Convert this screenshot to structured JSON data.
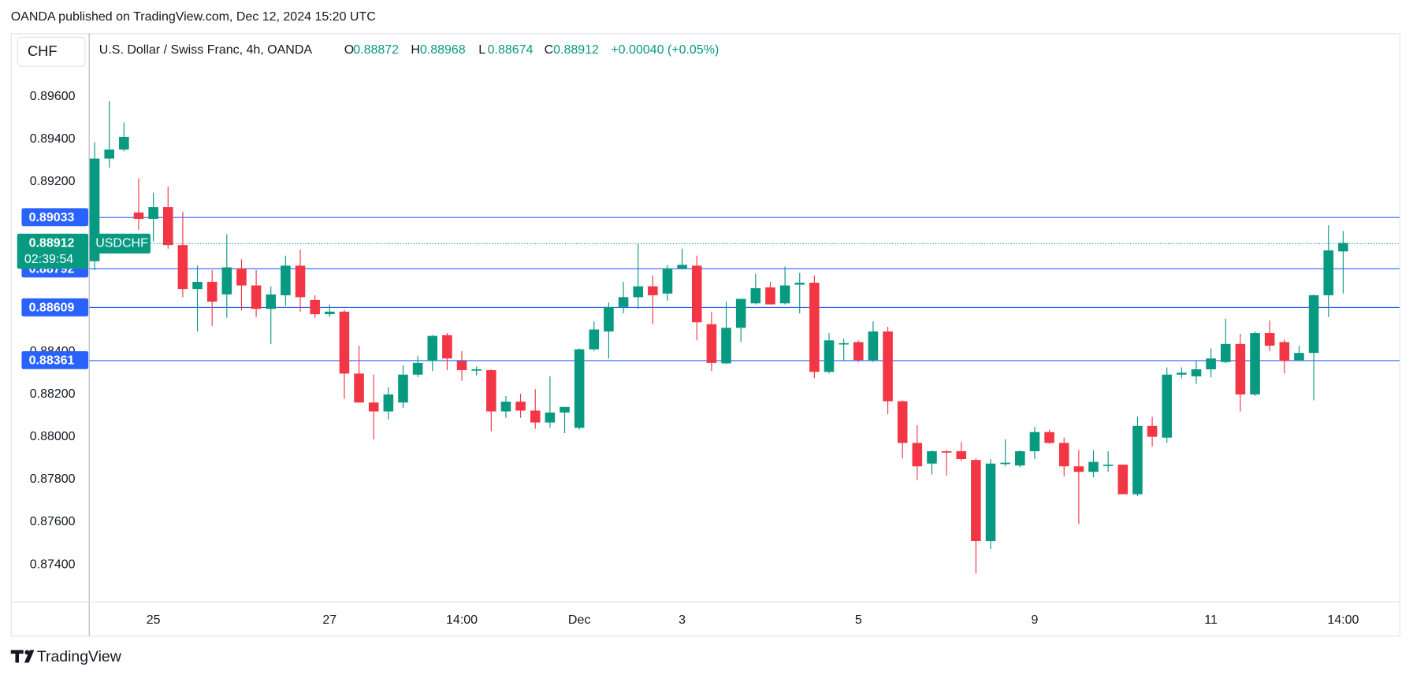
{
  "published": "OANDA published on TradingView.com, Dec 12, 2024 15:20 UTC",
  "currency_button": "CHF",
  "footer_brand": "TradingView",
  "chart_data": {
    "type": "candlestick",
    "title": "U.S. Dollar / Swiss Franc, 4h, OANDA",
    "ohlc_labels": [
      "O",
      "H",
      "L",
      "C"
    ],
    "change_label": "+0.00040 (+0.05%)",
    "symbol_label": "USDCHF",
    "countdown": "02:39:54",
    "up_color": "#089981",
    "down_color": "#f23645",
    "price_line_color": "#2962ff",
    "grid": false,
    "categories": [
      null,
      null,
      null,
      null,
      "25",
      null,
      null,
      null,
      null,
      null,
      null,
      null,
      null,
      null,
      null,
      null,
      "27",
      null,
      null,
      null,
      null,
      null,
      null,
      null,
      null,
      "14:00",
      null,
      null,
      null,
      null,
      null,
      null,
      null,
      "Dec",
      null,
      null,
      null,
      null,
      null,
      null,
      "3",
      null,
      null,
      null,
      null,
      null,
      null,
      null,
      null,
      null,
      null,
      null,
      "5",
      null,
      null,
      null,
      null,
      null,
      null,
      null,
      null,
      null,
      null,
      null,
      "9",
      null,
      null,
      null,
      null,
      null,
      null,
      null,
      null,
      null,
      null,
      null,
      "11",
      null,
      null,
      null,
      null,
      null,
      null,
      null,
      null,
      "14:00"
    ],
    "open": [
      0.88826,
      0.89308,
      0.89351,
      0.89055,
      0.89025,
      0.8908,
      0.88902,
      0.88695,
      0.88729,
      0.8867,
      0.88792,
      0.88712,
      0.88602,
      0.88666,
      0.88805,
      0.88644,
      0.88577,
      0.88589,
      0.88298,
      0.88162,
      0.8812,
      0.88162,
      0.88293,
      0.88357,
      0.88479,
      0.88357,
      0.88314,
      0.88314,
      0.8812,
      0.88166,
      0.88124,
      0.88068,
      0.88115,
      0.88043,
      0.88412,
      0.88496,
      0.88611,
      0.88657,
      0.88708,
      0.88674,
      0.88792,
      0.88805,
      0.8853,
      0.88346,
      0.88513,
      0.88628,
      0.88703,
      0.88628,
      0.88716,
      0.88725,
      0.88306,
      0.88437,
      0.88446,
      0.88361,
      0.88496,
      0.88168,
      0.87972,
      0.87875,
      0.87933,
      0.87933,
      0.87892,
      0.87511,
      0.87875,
      0.87866,
      0.87933,
      0.88023,
      0.87972,
      0.87862,
      0.87836,
      0.87866,
      0.8787,
      0.87731,
      0.88052,
      0.87997,
      0.88293,
      0.88285,
      0.88318,
      0.88352,
      0.88437,
      0.882,
      0.88488,
      0.88446,
      0.88361,
      0.88395,
      0.88666,
      0.88872
    ],
    "high": [
      0.89385,
      0.89579,
      0.89478,
      0.89215,
      0.89148,
      0.89177,
      0.89059,
      0.88805,
      0.88784,
      0.88953,
      0.88835,
      0.88784,
      0.88708,
      0.88852,
      0.88881,
      0.88666,
      0.88623,
      0.88598,
      0.88429,
      0.88293,
      0.88234,
      0.88336,
      0.88382,
      0.88479,
      0.88488,
      0.88403,
      0.88331,
      0.88318,
      0.88192,
      0.88204,
      0.88225,
      0.88285,
      0.88137,
      0.88416,
      0.88543,
      0.88632,
      0.88729,
      0.88907,
      0.88759,
      0.88809,
      0.88885,
      0.88852,
      0.88589,
      0.88636,
      0.88649,
      0.88767,
      0.88729,
      0.88801,
      0.88771,
      0.88759,
      0.88488,
      0.88462,
      0.88454,
      0.88543,
      0.88518,
      0.88172,
      0.88056,
      0.87938,
      0.87937,
      0.87976,
      0.879,
      0.87896,
      0.87989,
      0.87938,
      0.88048,
      0.88035,
      0.87997,
      0.87938,
      0.87938,
      0.87933,
      0.8787,
      0.88095,
      0.88095,
      0.88327,
      0.88327,
      0.88357,
      0.88416,
      0.88556,
      0.88484,
      0.88496,
      0.88547,
      0.88458,
      0.88429,
      0.8867,
      0.88995,
      0.88968
    ],
    "low": [
      0.88784,
      0.89266,
      0.89342,
      0.88974,
      0.88919,
      0.88885,
      0.88657,
      0.88496,
      0.88522,
      0.8856,
      0.88594,
      0.88564,
      0.88437,
      0.88615,
      0.88589,
      0.8856,
      0.88564,
      0.88179,
      0.88162,
      0.87989,
      0.88082,
      0.88137,
      0.88281,
      0.8831,
      0.88314,
      0.88264,
      0.88289,
      0.88027,
      0.8809,
      0.8809,
      0.88039,
      0.88043,
      0.88018,
      0.88035,
      0.88403,
      0.88369,
      0.88581,
      0.88602,
      0.8853,
      0.8864,
      0.88788,
      0.88454,
      0.8831,
      0.88342,
      0.88446,
      0.88623,
      0.88623,
      0.88623,
      0.88581,
      0.88276,
      0.88298,
      0.88361,
      0.88352,
      0.88352,
      0.88107,
      0.879,
      0.87798,
      0.87824,
      0.87819,
      0.87887,
      0.87358,
      0.87473,
      0.87862,
      0.87857,
      0.87896,
      0.87968,
      0.87815,
      0.87591,
      0.87811,
      0.87836,
      0.87731,
      0.87722,
      0.87955,
      0.87972,
      0.88276,
      0.88249,
      0.88281,
      0.88346,
      0.8812,
      0.88192,
      0.88403,
      0.88298,
      0.88357,
      0.88172,
      0.88564,
      0.88674
    ],
    "close": [
      0.89308,
      0.89351,
      0.8941,
      0.89025,
      0.8908,
      0.88902,
      0.88695,
      0.88729,
      0.88636,
      0.88797,
      0.88712,
      0.88602,
      0.8867,
      0.88805,
      0.88657,
      0.88577,
      0.88589,
      0.88298,
      0.88162,
      0.8812,
      0.882,
      0.88293,
      0.88348,
      0.88475,
      0.88369,
      0.88314,
      0.88318,
      0.8812,
      0.88166,
      0.88124,
      0.88068,
      0.88115,
      0.88141,
      0.88412,
      0.88505,
      0.88611,
      0.88657,
      0.88708,
      0.88666,
      0.88792,
      0.88809,
      0.88539,
      0.88348,
      0.88513,
      0.88649,
      0.88699,
      0.88623,
      0.88712,
      0.88725,
      0.88306,
      0.88454,
      0.88441,
      0.88361,
      0.88496,
      0.88168,
      0.87972,
      0.87862,
      0.87933,
      0.87929,
      0.87896,
      0.87511,
      0.87875,
      0.87879,
      0.87933,
      0.88023,
      0.87972,
      0.87862,
      0.87836,
      0.87883,
      0.8787,
      0.87731,
      0.88052,
      0.88001,
      0.88293,
      0.88302,
      0.88318,
      0.88369,
      0.88437,
      0.882,
      0.88488,
      0.88429,
      0.88357,
      0.88395,
      0.88666,
      0.88877,
      0.88912
    ],
    "price_lines": [
      0.89033,
      0.88792,
      0.88609,
      0.88361
    ],
    "ylim": [
      0.87227,
      0.89897
    ],
    "yticks": [
      {
        "value": 0.896,
        "label": "0.89600"
      },
      {
        "value": 0.894,
        "label": "0.89400"
      },
      {
        "value": 0.892,
        "label": "0.89200"
      },
      {
        "value": 0.884,
        "label": "0.88400"
      },
      {
        "value": 0.882,
        "label": "0.88200"
      },
      {
        "value": 0.88,
        "label": "0.88000"
      },
      {
        "value": 0.878,
        "label": "0.87800"
      },
      {
        "value": 0.876,
        "label": "0.87600"
      },
      {
        "value": 0.874,
        "label": "0.87400"
      }
    ]
  }
}
